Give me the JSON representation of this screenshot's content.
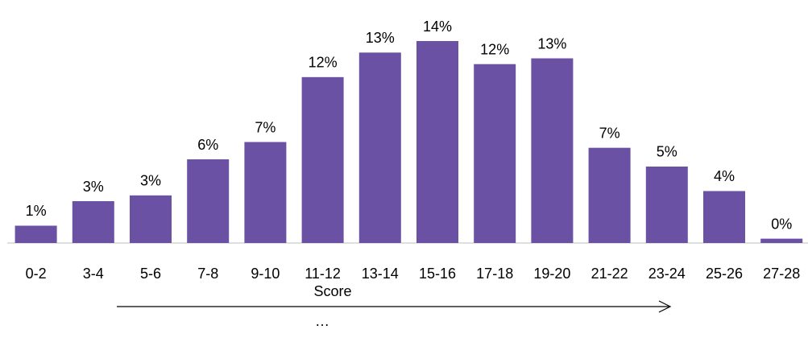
{
  "chart_data": {
    "type": "bar",
    "x_label": "Score",
    "annotation": "…",
    "categories": [
      "0-2",
      "3-4",
      "5-6",
      "7-8",
      "9-10",
      "11-12",
      "13-14",
      "15-16",
      "17-18",
      "19-20",
      "21-22",
      "23-24",
      "25-26",
      "27-28"
    ],
    "values": [
      1.2,
      2.9,
      3.3,
      5.8,
      7.0,
      11.5,
      13.2,
      14.0,
      12.4,
      12.8,
      6.6,
      5.3,
      3.6,
      0.3
    ],
    "value_labels": [
      "1%",
      "3%",
      "3%",
      "6%",
      "7%",
      "12%",
      "13%",
      "14%",
      "12%",
      "13%",
      "7%",
      "5%",
      "4%",
      "0%"
    ],
    "color": "#6a51a3",
    "ylim": [
      0,
      14
    ]
  }
}
